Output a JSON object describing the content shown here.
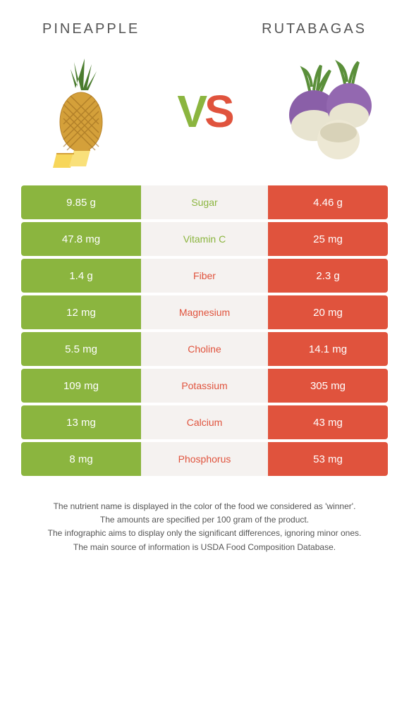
{
  "foods": {
    "left": "PINEAPPLE",
    "right": "RUTABAGAS"
  },
  "vs": {
    "v": "V",
    "s": "S"
  },
  "colors": {
    "left": "#8bb53f",
    "right": "#e0533d",
    "mid_bg": "#f5f2f0",
    "text": "#555555"
  },
  "rows": [
    {
      "nutrient": "Sugar",
      "left": "9.85 g",
      "right": "4.46 g",
      "winner": "left"
    },
    {
      "nutrient": "Vitamin C",
      "left": "47.8 mg",
      "right": "25 mg",
      "winner": "left"
    },
    {
      "nutrient": "Fiber",
      "left": "1.4 g",
      "right": "2.3 g",
      "winner": "right"
    },
    {
      "nutrient": "Magnesium",
      "left": "12 mg",
      "right": "20 mg",
      "winner": "right"
    },
    {
      "nutrient": "Choline",
      "left": "5.5 mg",
      "right": "14.1 mg",
      "winner": "right"
    },
    {
      "nutrient": "Potassium",
      "left": "109 mg",
      "right": "305 mg",
      "winner": "right"
    },
    {
      "nutrient": "Calcium",
      "left": "13 mg",
      "right": "43 mg",
      "winner": "right"
    },
    {
      "nutrient": "Phosphorus",
      "left": "8 mg",
      "right": "53 mg",
      "winner": "right"
    }
  ],
  "footer": [
    "The nutrient name is displayed in the color of the food we considered as 'winner'.",
    "The amounts are specified per 100 gram of the product.",
    "The infographic aims to display only the significant differences, ignoring minor ones.",
    "The main source of information is USDA Food Composition Database."
  ]
}
